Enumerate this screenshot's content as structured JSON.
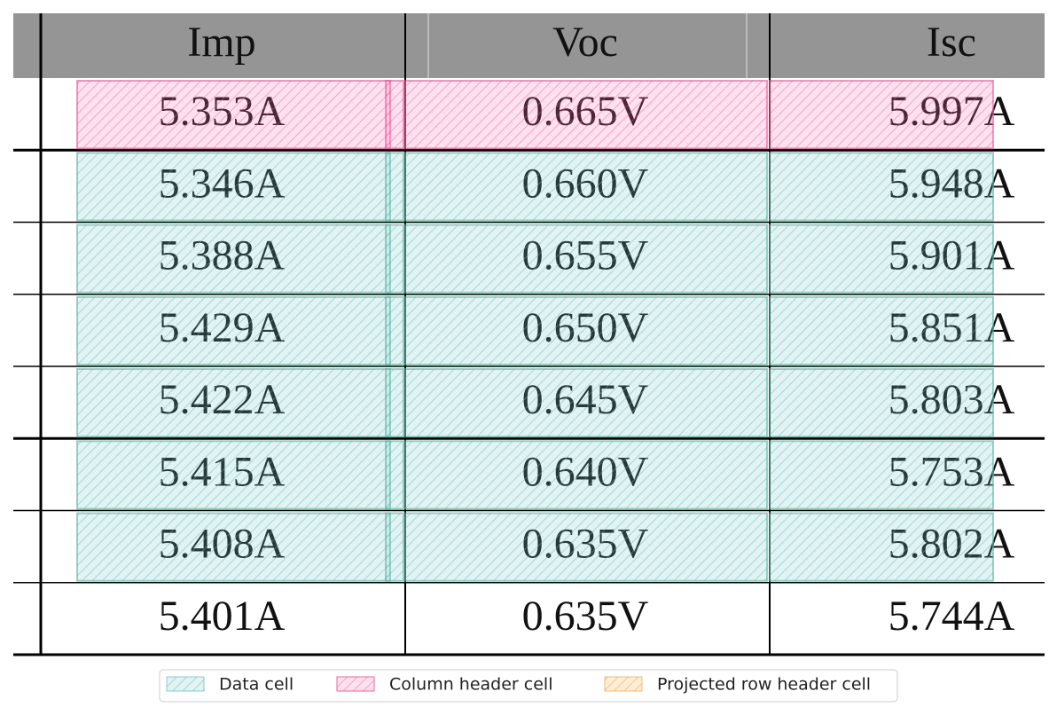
{
  "table": {
    "header": [
      "Imp",
      "Voc",
      "Isc"
    ],
    "rows": [
      [
        "5.353A",
        "0.665V",
        "5.997A"
      ],
      [
        "5.346A",
        "0.660V",
        "5.948A"
      ],
      [
        "5.388A",
        "0.655V",
        "5.901A"
      ],
      [
        "5.429A",
        "0.650V",
        "5.851A"
      ],
      [
        "5.422A",
        "0.645V",
        "5.803A"
      ],
      [
        "5.415A",
        "0.640V",
        "5.753A"
      ],
      [
        "5.408A",
        "0.635V",
        "5.802A"
      ],
      [
        "5.401A",
        "0.635V",
        "5.744A"
      ]
    ]
  },
  "legend": [
    "Data cell",
    "Column header cell",
    "Projected row header cell"
  ]
}
